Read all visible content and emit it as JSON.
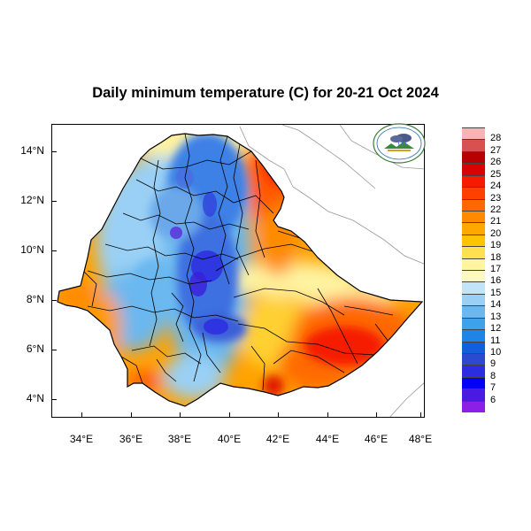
{
  "title": "Daily minimum temperature (C) for 20-21 Oct 2024",
  "map": {
    "y_ticks": [
      "14°N",
      "12°N",
      "10°N",
      "8°N",
      "6°N",
      "4°N"
    ],
    "x_ticks": [
      "34°E",
      "36°E",
      "38°E",
      "40°E",
      "42°E",
      "44°E",
      "46°E",
      "48°E"
    ],
    "lon_range": [
      32.9,
      48.2
    ],
    "lat_range": [
      3.1,
      15.1
    ]
  },
  "colorbar": {
    "labels": [
      "28",
      "27",
      "26",
      "25",
      "24",
      "23",
      "22",
      "21",
      "20",
      "19",
      "18",
      "17",
      "16",
      "15",
      "14",
      "13",
      "12",
      "11",
      "10",
      "9",
      "8",
      "7",
      "6"
    ],
    "colors": [
      "#f8b4b4",
      "#d85050",
      "#b80000",
      "#d80000",
      "#f51a00",
      "#ff4000",
      "#ff6800",
      "#ff8a00",
      "#ffa800",
      "#ffc400",
      "#ffe050",
      "#fff5a0",
      "#fff8c0",
      "#c2e4f8",
      "#9ad0f5",
      "#6ab8ef",
      "#3ea2eb",
      "#1e84e6",
      "#1060d8",
      "#2c4ad0",
      "#2d2de0",
      "#0000f5",
      "#4a1ae0",
      "#8a20e8"
    ]
  },
  "logo": {
    "icon": "ethiopian-meteorology-institute-logo"
  }
}
